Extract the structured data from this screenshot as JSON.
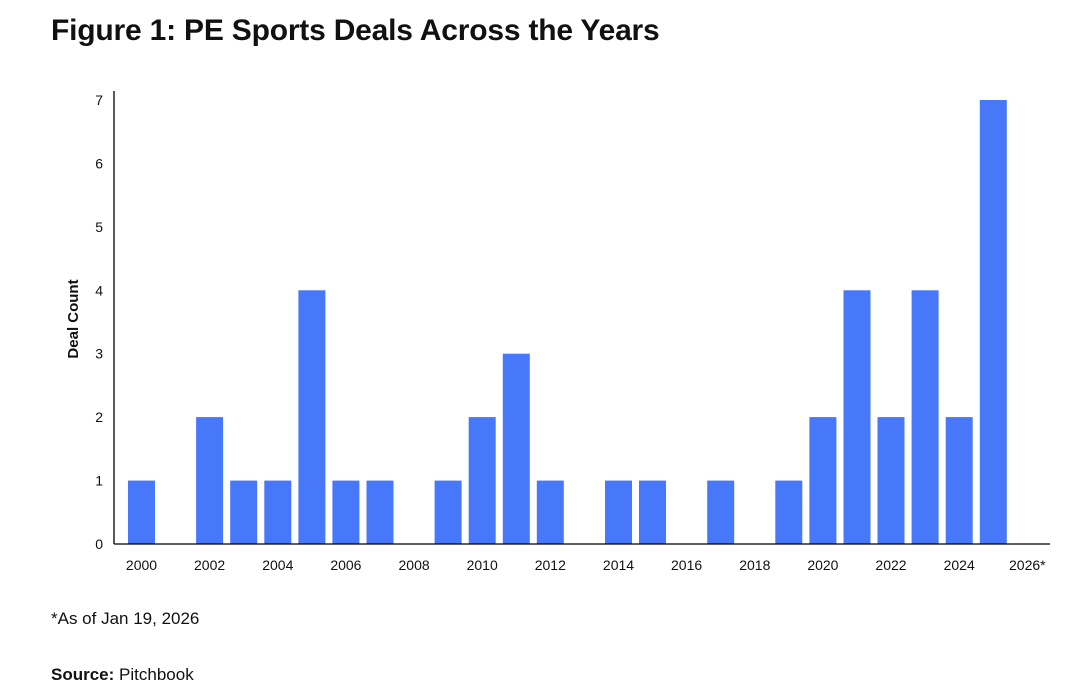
{
  "title": "Figure 1: PE Sports Deals Across the Years",
  "footnote": "*As of Jan 19, 2026",
  "source": {
    "label": "Source:",
    "value": "Pitchbook"
  },
  "colors": {
    "bar": "#4878FA",
    "axis": "#000000",
    "text": "#111111"
  },
  "chart_data": {
    "type": "bar",
    "ylabel": "Deal Count",
    "xlabel": "",
    "ylim": [
      0,
      7
    ],
    "yticks": [
      0,
      1,
      2,
      3,
      4,
      5,
      6,
      7
    ],
    "categories": [
      "2000",
      "2001",
      "2002",
      "2003",
      "2004",
      "2005",
      "2006",
      "2007",
      "2008",
      "2009",
      "2010",
      "2011",
      "2012",
      "2013",
      "2014",
      "2015",
      "2016",
      "2017",
      "2018",
      "2019",
      "2020",
      "2021",
      "2022",
      "2023",
      "2024",
      "2025",
      "2026*"
    ],
    "values": [
      1,
      0,
      2,
      1,
      1,
      4,
      1,
      1,
      0,
      1,
      2,
      3,
      1,
      0,
      1,
      1,
      0,
      1,
      0,
      1,
      2,
      4,
      2,
      4,
      2,
      7,
      0
    ],
    "xtick_labels": [
      "2000",
      "2002",
      "2004",
      "2006",
      "2008",
      "2010",
      "2012",
      "2014",
      "2016",
      "2018",
      "2020",
      "2022",
      "2024",
      "2026*"
    ],
    "grid": false,
    "legend": "none"
  }
}
